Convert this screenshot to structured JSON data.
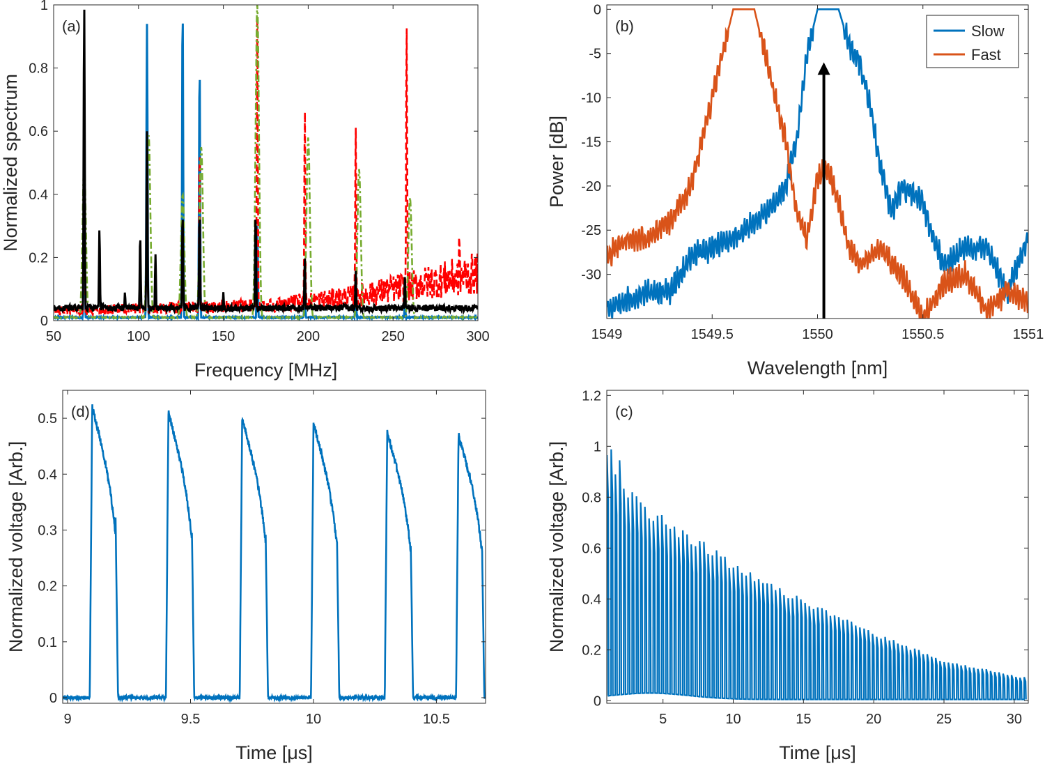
{
  "colors": {
    "blue": "#0072BD",
    "orange": "#D95319",
    "red": "#FF0000",
    "green": "#77AC30",
    "black": "#000000",
    "axis": "#262626"
  },
  "chart_data": [
    {
      "id": "a",
      "type": "line",
      "panel_label": "(a)",
      "xlabel": "Frequency [MHz]",
      "ylabel": "Normalized spectrum",
      "xlim": [
        50,
        300
      ],
      "ylim": [
        0,
        1
      ],
      "xticks": [
        50,
        100,
        150,
        200,
        250,
        300
      ],
      "yticks": [
        0,
        0.2,
        0.4,
        0.6,
        0.8,
        1
      ],
      "ytick_labels": [
        "0",
        "0.2",
        "0.4",
        "0.6",
        "0.8",
        "1"
      ],
      "series": [
        {
          "color": "#0072BD",
          "style": "solid",
          "baseline": 0.01,
          "peaks": [
            [
              68,
              0.45
            ],
            [
              105,
              0.94
            ],
            [
              126,
              1.0
            ],
            [
              136,
              0.81
            ],
            [
              170,
              0.3
            ],
            [
              198,
              0.1
            ],
            [
              228,
              0.1
            ],
            [
              257,
              0.05
            ]
          ]
        },
        {
          "color": "#FF0000",
          "style": "dashed",
          "baseline": 0.02,
          "noise_rise": [
            [
              50,
              0.03
            ],
            [
              180,
              0.05
            ],
            [
              230,
              0.08
            ],
            [
              270,
              0.12
            ],
            [
              300,
              0.15
            ]
          ],
          "peaks": [
            [
              68,
              0.52
            ],
            [
              105,
              0.55
            ],
            [
              126,
              0.3
            ],
            [
              136,
              0.55
            ],
            [
              170,
              0.96
            ],
            [
              198,
              0.67
            ],
            [
              228,
              0.62
            ],
            [
              258,
              0.94
            ],
            [
              289,
              0.28
            ]
          ]
        },
        {
          "color": "#77AC30",
          "style": "dashdot",
          "baseline": 0.01,
          "peaks": [
            [
              68,
              0.5
            ],
            [
              106,
              0.59
            ],
            [
              126,
              0.4
            ],
            [
              137,
              0.55
            ],
            [
              170,
              1.0
            ],
            [
              200,
              0.58
            ],
            [
              230,
              0.48
            ],
            [
              260,
              0.39
            ]
          ]
        },
        {
          "color": "#000000",
          "style": "solid",
          "baseline": 0.04,
          "peaks": [
            [
              68,
              1.0
            ],
            [
              77,
              0.29
            ],
            [
              92,
              0.09
            ],
            [
              101,
              0.27
            ],
            [
              105,
              0.6
            ],
            [
              110,
              0.21
            ],
            [
              126,
              0.34
            ],
            [
              136,
              0.34
            ],
            [
              150,
              0.09
            ],
            [
              169,
              0.34
            ],
            [
              198,
              0.2
            ],
            [
              228,
              0.16
            ],
            [
              257,
              0.14
            ]
          ]
        }
      ]
    },
    {
      "id": "b",
      "type": "line",
      "panel_label": "(b)",
      "xlabel": "Wavelength [nm]",
      "ylabel": "Power [dB]",
      "xlim": [
        1549,
        1551
      ],
      "ylim": [
        -35,
        0.5
      ],
      "xticks": [
        1549,
        1549.5,
        1550,
        1550.5,
        1551
      ],
      "xtick_labels": [
        "1549",
        "1549.5",
        "1550",
        "1550.5",
        "1551"
      ],
      "yticks": [
        0,
        -5,
        -10,
        -15,
        -20,
        -25,
        -30
      ],
      "ytick_labels": [
        "0",
        "-5",
        "-10",
        "-15",
        "-20",
        "-25",
        "-30"
      ],
      "legend": {
        "position": "top-right",
        "entries": [
          {
            "label": "Slow",
            "color": "#0072BD"
          },
          {
            "label": "Fast",
            "color": "#D95319"
          }
        ]
      },
      "arrow": {
        "x": 1550.03,
        "y_from": -35,
        "y_to": -6
      },
      "series": [
        {
          "name": "Slow",
          "color": "#0072BD",
          "points": [
            [
              1549.0,
              -34
            ],
            [
              1549.1,
              -33
            ],
            [
              1549.2,
              -32
            ],
            [
              1549.3,
              -32
            ],
            [
              1549.4,
              -28
            ],
            [
              1549.5,
              -27
            ],
            [
              1549.6,
              -26
            ],
            [
              1549.7,
              -24
            ],
            [
              1549.8,
              -22
            ],
            [
              1549.85,
              -20
            ],
            [
              1549.9,
              -15
            ],
            [
              1549.95,
              -5
            ],
            [
              1550.0,
              0
            ],
            [
              1550.05,
              0
            ],
            [
              1550.1,
              0
            ],
            [
              1550.15,
              -4
            ],
            [
              1550.2,
              -6
            ],
            [
              1550.25,
              -11
            ],
            [
              1550.3,
              -18
            ],
            [
              1550.35,
              -23
            ],
            [
              1550.4,
              -20
            ],
            [
              1550.5,
              -22
            ],
            [
              1550.55,
              -26
            ],
            [
              1550.6,
              -29
            ],
            [
              1550.7,
              -27
            ],
            [
              1550.8,
              -27
            ],
            [
              1550.9,
              -32
            ],
            [
              1551.0,
              -26
            ]
          ]
        },
        {
          "name": "Fast",
          "color": "#D95319",
          "points": [
            [
              1549.0,
              -28
            ],
            [
              1549.1,
              -26
            ],
            [
              1549.2,
              -26
            ],
            [
              1549.3,
              -24
            ],
            [
              1549.4,
              -20
            ],
            [
              1549.45,
              -15
            ],
            [
              1549.5,
              -10
            ],
            [
              1549.55,
              -5
            ],
            [
              1549.6,
              0
            ],
            [
              1549.65,
              0
            ],
            [
              1549.7,
              0
            ],
            [
              1549.75,
              -5
            ],
            [
              1549.8,
              -10
            ],
            [
              1549.85,
              -15
            ],
            [
              1549.9,
              -23
            ],
            [
              1549.95,
              -26
            ],
            [
              1550.0,
              -19
            ],
            [
              1550.05,
              -18
            ],
            [
              1550.1,
              -22
            ],
            [
              1550.15,
              -27
            ],
            [
              1550.2,
              -29
            ],
            [
              1550.3,
              -27
            ],
            [
              1550.4,
              -30
            ],
            [
              1550.5,
              -35
            ],
            [
              1550.6,
              -31
            ],
            [
              1550.7,
              -30
            ],
            [
              1550.8,
              -34
            ],
            [
              1550.9,
              -32
            ],
            [
              1551.0,
              -33
            ]
          ]
        }
      ]
    },
    {
      "id": "d",
      "type": "line",
      "panel_label": "(d)",
      "xlabel": "Time [μs]",
      "ylabel": "Normalized voltage [Arb.]",
      "xlim": [
        8.98,
        10.7
      ],
      "ylim": [
        -0.01,
        0.55
      ],
      "xticks": [
        9,
        9.5,
        10,
        10.5
      ],
      "xtick_labels": [
        "9",
        "9.5",
        "10",
        "10.5"
      ],
      "yticks": [
        0,
        0.1,
        0.2,
        0.3,
        0.4,
        0.5
      ],
      "ytick_labels": [
        "0",
        "0.1",
        "0.2",
        "0.3",
        "0.4",
        "0.5"
      ],
      "series": [
        {
          "color": "#0072BD",
          "period": 0.3,
          "pulse_width": 0.095,
          "pulses": [
            [
              9.1,
              0.52
            ],
            [
              9.41,
              0.51
            ],
            [
              9.71,
              0.5
            ],
            [
              10.0,
              0.49
            ],
            [
              10.3,
              0.475
            ],
            [
              10.59,
              0.47
            ]
          ]
        }
      ]
    },
    {
      "id": "c",
      "type": "line",
      "panel_label": "(c)",
      "xlabel": "Time [μs]",
      "ylabel": "Normalized voltage [Arb.]",
      "xlim": [
        1,
        31
      ],
      "ylim": [
        -0.01,
        1.22
      ],
      "xticks": [
        5,
        10,
        15,
        20,
        25,
        30
      ],
      "yticks": [
        0,
        0.2,
        0.4,
        0.6,
        0.8,
        1,
        1.2
      ],
      "ytick_labels": [
        "0",
        "0.2",
        "0.4",
        "0.6",
        "0.8",
        "1",
        "1.2"
      ],
      "series": [
        {
          "color": "#0072BD",
          "period": 0.3,
          "envelope": [
            [
              1,
              1.02
            ],
            [
              2,
              0.88
            ],
            [
              3,
              0.81
            ],
            [
              5,
              0.73
            ],
            [
              10,
              0.55
            ],
            [
              15,
              0.4
            ],
            [
              20,
              0.27
            ],
            [
              25,
              0.16
            ],
            [
              31,
              0.09
            ]
          ]
        }
      ]
    }
  ]
}
